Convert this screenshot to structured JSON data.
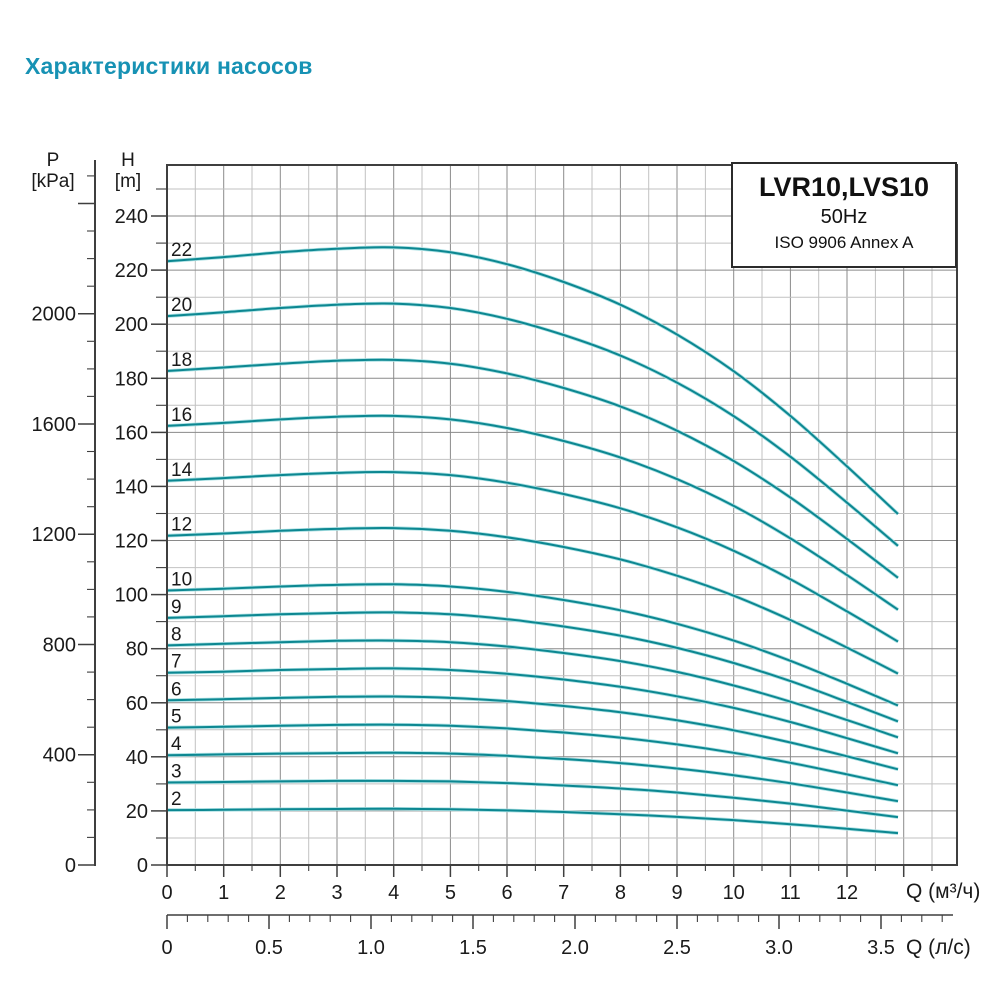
{
  "page": {
    "title": "Характеристики насосов"
  },
  "colors": {
    "title": "#1792b4",
    "curve": "#0c8791",
    "curve_halo": "#a8dfe2",
    "grid_major": "#8a8a8a",
    "grid_minor": "#c2c2c2",
    "axis": "#3f3f3f",
    "text": "#1a1a1a"
  },
  "legend": {
    "model": "LVR10,LVS10",
    "frequency": "50Hz",
    "standard": "ISO 9906 Annex A"
  },
  "axes": {
    "pressure": {
      "name": "P",
      "unit": "[kPa]",
      "tick_values": [
        2000,
        1600,
        1200,
        800,
        400,
        0
      ],
      "minor_step_kpa": 100,
      "max_tick_kpa": 2500,
      "kpa_per_m_head": 9.81
    },
    "head": {
      "name": "H",
      "unit": "[m]",
      "tick_values": [
        240,
        220,
        200,
        180,
        160,
        140,
        120,
        100,
        80,
        60,
        40,
        20,
        0
      ],
      "minor_step_m": 10,
      "max_tick_m": 250
    },
    "flow_m3h": {
      "unit_label": "Q (м³/ч)",
      "tick_values": [
        0,
        1,
        2,
        3,
        4,
        5,
        6,
        7,
        8,
        9,
        10,
        11,
        12
      ],
      "minor_step": 0.5,
      "max_tick": 13.5
    },
    "flow_ls": {
      "unit_label": "Q (л/с)",
      "tick_labels": [
        "0",
        "0.5",
        "1.0",
        "1.5",
        "2.0",
        "2.5",
        "3.0",
        "3.5"
      ],
      "tick_values": [
        0,
        0.5,
        1,
        1.5,
        2,
        2.5,
        3,
        3.5
      ],
      "minor_step": 0.1,
      "max_tick": 3.8,
      "m3h_per_ls": 3.6
    }
  },
  "chart_data": {
    "type": "line",
    "title": "LVR10,LVS10  50Hz  ISO 9906 Annex A",
    "xlabel": "Q (м³/ч)",
    "ylabel": "H [m]",
    "xlim": [
      0,
      13.94
    ],
    "ylim": [
      0,
      258
    ],
    "grid": true,
    "legend_position": "top-right",
    "x": [
      0,
      1,
      2,
      3,
      4,
      5,
      6,
      7,
      8,
      9,
      10,
      11,
      12,
      12.9
    ],
    "series": [
      {
        "name": "22",
        "values": [
          223.3,
          224.8,
          226.6,
          227.9,
          228.4,
          226.6,
          222.2,
          215.6,
          207.2,
          196.2,
          182.6,
          166.1,
          147.4,
          129.8
        ]
      },
      {
        "name": "20",
        "values": [
          203.0,
          204.4,
          206.0,
          207.2,
          207.6,
          206.0,
          202.0,
          196.0,
          188.4,
          178.4,
          166.0,
          151.0,
          134.0,
          118.0
        ]
      },
      {
        "name": "18",
        "values": [
          182.7,
          184.0,
          185.4,
          186.5,
          186.8,
          185.4,
          181.8,
          176.4,
          169.6,
          160.6,
          149.4,
          135.9,
          120.6,
          106.2
        ]
      },
      {
        "name": "16",
        "values": [
          162.4,
          163.5,
          164.8,
          165.8,
          166.1,
          164.8,
          161.6,
          156.8,
          150.7,
          142.7,
          132.8,
          120.8,
          107.2,
          94.4
        ]
      },
      {
        "name": "14",
        "values": [
          142.1,
          143.1,
          144.2,
          145.0,
          145.3,
          144.2,
          141.4,
          137.2,
          131.9,
          124.9,
          116.2,
          105.7,
          93.8,
          82.6
        ]
      },
      {
        "name": "12",
        "values": [
          121.8,
          122.6,
          123.6,
          124.3,
          124.6,
          123.6,
          121.2,
          117.6,
          113.0,
          107.0,
          99.6,
          90.6,
          80.4,
          70.8
        ]
      },
      {
        "name": "10",
        "values": [
          101.5,
          102.2,
          103.0,
          103.6,
          103.8,
          103.0,
          101.0,
          98.0,
          94.2,
          89.2,
          83.0,
          75.5,
          67.0,
          59.0
        ]
      },
      {
        "name": "9",
        "values": [
          91.4,
          92.0,
          92.7,
          93.2,
          93.4,
          92.7,
          90.9,
          88.2,
          84.8,
          80.3,
          74.7,
          68.0,
          60.3,
          53.1
        ]
      },
      {
        "name": "8",
        "values": [
          81.2,
          81.8,
          82.4,
          82.9,
          83.0,
          82.4,
          80.8,
          78.4,
          75.4,
          71.4,
          66.4,
          60.4,
          53.6,
          47.2
        ]
      },
      {
        "name": "7",
        "values": [
          71.1,
          71.5,
          72.1,
          72.5,
          72.7,
          72.1,
          70.7,
          68.6,
          65.9,
          62.4,
          58.1,
          52.9,
          46.9,
          41.3
        ]
      },
      {
        "name": "6",
        "values": [
          60.9,
          61.3,
          61.8,
          62.2,
          62.3,
          61.8,
          60.6,
          58.8,
          56.5,
          53.5,
          49.8,
          45.3,
          40.2,
          35.4
        ]
      },
      {
        "name": "5",
        "values": [
          50.8,
          51.1,
          51.5,
          51.8,
          51.9,
          51.5,
          50.5,
          49.0,
          47.1,
          44.6,
          41.5,
          37.8,
          33.5,
          29.5
        ]
      },
      {
        "name": "4",
        "values": [
          40.6,
          40.9,
          41.2,
          41.4,
          41.5,
          41.2,
          40.4,
          39.2,
          37.7,
          35.7,
          33.2,
          30.2,
          26.8,
          23.6
        ]
      },
      {
        "name": "3",
        "values": [
          30.5,
          30.7,
          30.9,
          31.1,
          31.1,
          30.9,
          30.3,
          29.4,
          28.3,
          26.8,
          24.9,
          22.7,
          20.1,
          17.7
        ]
      },
      {
        "name": "2",
        "values": [
          20.3,
          20.4,
          20.6,
          20.7,
          20.8,
          20.6,
          20.2,
          19.6,
          18.8,
          17.8,
          16.6,
          15.1,
          13.4,
          11.8
        ]
      }
    ]
  }
}
